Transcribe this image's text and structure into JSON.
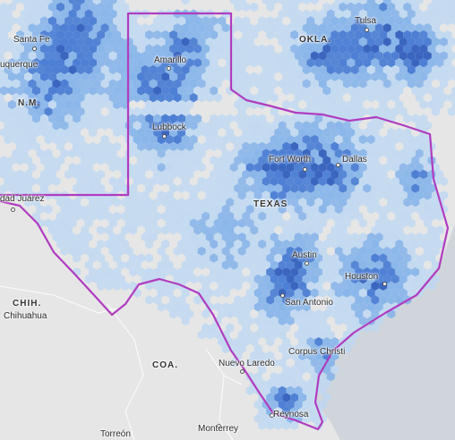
{
  "map": {
    "colors": {
      "background": "#e9e9e9",
      "land": "#e4e4e4",
      "water": "#cdd3d8",
      "state_outline": "#b03cc0",
      "hex_light": "#bcd7f3",
      "hex_mid": "#82b2ea",
      "hex_dark": "#4d7fd4",
      "hex_darkest": "#3a66c0"
    },
    "state_labels": {
      "okla": "OKLA.",
      "nm": "N.M.",
      "texas": "TEXAS",
      "chih": "CHIH.",
      "coa": "COA."
    },
    "cities": {
      "santa_fe": "Santa Fe",
      "albuquerque": "uquerque",
      "amarillo": "Amarillo",
      "lubbock": "Lubbock",
      "tulsa": "Tulsa",
      "fort_worth": "Fort Worth",
      "dallas": "Dallas",
      "ciudad_juarez": "dad Juárez",
      "austin": "Austin",
      "houston": "Houston",
      "san_antonio": "San Antonio",
      "chihuahua": "Chihuahua",
      "nuevo_laredo": "Nuevo Laredo",
      "corpus_christi": "Corpus Christi",
      "reynosa": "Reynosa",
      "monterrey": "Monterrey",
      "torreon": "Torreón"
    }
  }
}
